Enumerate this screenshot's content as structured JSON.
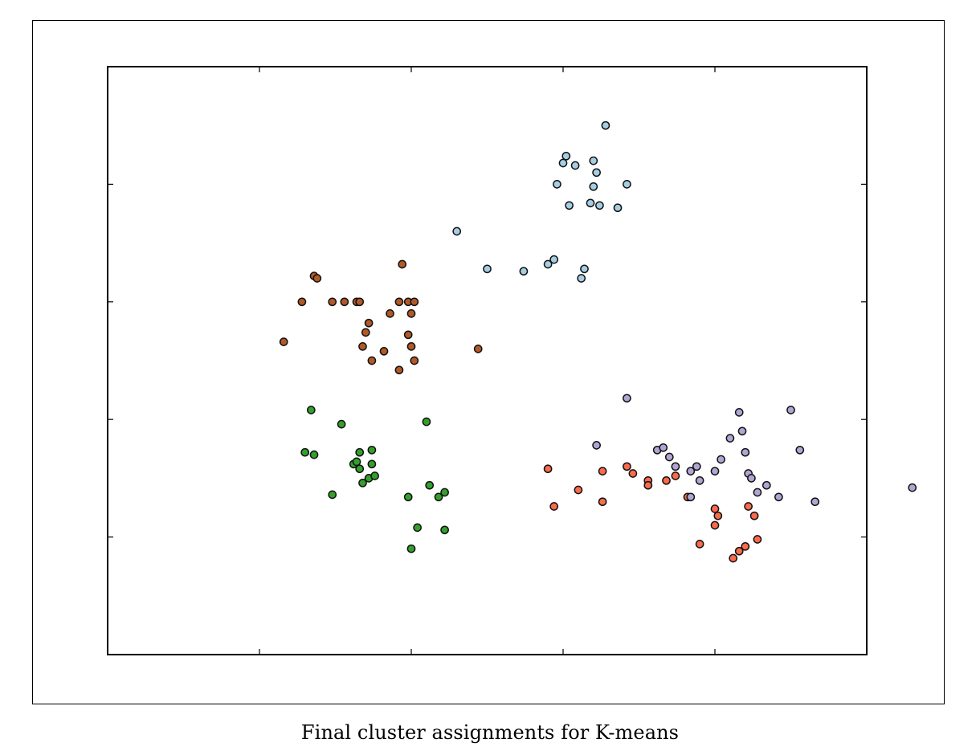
{
  "caption": "Final cluster assignments for K-means",
  "chart_data": {
    "type": "scatter",
    "title": "",
    "xlabel": "",
    "ylabel": "",
    "xlim": [
      -5,
      20
    ],
    "ylim": [
      -15,
      10
    ],
    "x_ticks": [
      0,
      5,
      10,
      15
    ],
    "y_ticks": [
      -10,
      -5,
      0,
      5
    ],
    "tick_labels_shown": false,
    "grid": false,
    "legend": "none",
    "series": [
      {
        "color": "#a6cee3",
        "points": [
          [
            6.5,
            3.0
          ],
          [
            7.5,
            1.4
          ],
          [
            8.7,
            1.3
          ],
          [
            9.5,
            1.6
          ],
          [
            9.7,
            1.8
          ],
          [
            9.8,
            5.0
          ],
          [
            10.0,
            5.9
          ],
          [
            10.1,
            6.2
          ],
          [
            10.4,
            5.8
          ],
          [
            10.2,
            4.1
          ],
          [
            10.6,
            1.0
          ],
          [
            10.7,
            1.4
          ],
          [
            10.9,
            4.2
          ],
          [
            11.0,
            4.9
          ],
          [
            11.0,
            6.0
          ],
          [
            11.1,
            5.5
          ],
          [
            11.2,
            4.1
          ],
          [
            11.4,
            7.5
          ],
          [
            11.8,
            4.0
          ],
          [
            12.1,
            5.0
          ]
        ]
      },
      {
        "color": "#b15928",
        "points": [
          [
            0.8,
            -1.7
          ],
          [
            1.4,
            0.0
          ],
          [
            1.8,
            1.1
          ],
          [
            1.9,
            1.0
          ],
          [
            2.4,
            0.0
          ],
          [
            2.8,
            0.0
          ],
          [
            3.2,
            0.0
          ],
          [
            3.3,
            0.0
          ],
          [
            3.5,
            -1.3
          ],
          [
            3.4,
            -1.9
          ],
          [
            3.6,
            -0.9
          ],
          [
            3.7,
            -2.5
          ],
          [
            4.1,
            -2.1
          ],
          [
            4.3,
            -0.5
          ],
          [
            4.6,
            -2.9
          ],
          [
            4.6,
            0.0
          ],
          [
            4.7,
            1.6
          ],
          [
            4.9,
            0.0
          ],
          [
            4.9,
            -1.4
          ],
          [
            5.0,
            -0.5
          ],
          [
            5.0,
            -1.9
          ],
          [
            5.1,
            -2.5
          ],
          [
            5.1,
            0.0
          ],
          [
            7.2,
            -2.0
          ]
        ]
      },
      {
        "color": "#33a02c",
        "points": [
          [
            1.5,
            -6.4
          ],
          [
            1.7,
            -4.6
          ],
          [
            1.8,
            -6.5
          ],
          [
            2.4,
            -8.2
          ],
          [
            2.7,
            -5.2
          ],
          [
            3.1,
            -6.9
          ],
          [
            3.2,
            -6.8
          ],
          [
            3.3,
            -6.4
          ],
          [
            3.3,
            -7.1
          ],
          [
            3.4,
            -7.7
          ],
          [
            3.6,
            -7.5
          ],
          [
            3.7,
            -6.9
          ],
          [
            3.7,
            -6.3
          ],
          [
            3.8,
            -7.4
          ],
          [
            4.9,
            -8.3
          ],
          [
            5.0,
            -10.5
          ],
          [
            5.2,
            -9.6
          ],
          [
            5.5,
            -5.1
          ],
          [
            5.6,
            -7.8
          ],
          [
            5.9,
            -8.3
          ],
          [
            6.1,
            -8.1
          ],
          [
            6.1,
            -9.7
          ]
        ]
      },
      {
        "color": "#fb6a4a",
        "points": [
          [
            9.5,
            -7.1
          ],
          [
            9.7,
            -8.7
          ],
          [
            10.5,
            -8.0
          ],
          [
            11.3,
            -7.2
          ],
          [
            12.1,
            -7.0
          ],
          [
            12.3,
            -7.3
          ],
          [
            12.8,
            -7.6
          ],
          [
            12.8,
            -7.8
          ],
          [
            13.4,
            -7.6
          ],
          [
            13.7,
            -7.4
          ],
          [
            14.1,
            -8.3
          ],
          [
            14.5,
            -10.3
          ],
          [
            15.0,
            -9.5
          ],
          [
            15.0,
            -8.8
          ],
          [
            15.1,
            -9.1
          ],
          [
            15.6,
            -10.9
          ],
          [
            15.8,
            -10.6
          ],
          [
            16.0,
            -10.4
          ],
          [
            16.1,
            -8.7
          ],
          [
            16.3,
            -9.1
          ],
          [
            16.4,
            -10.1
          ],
          [
            11.3,
            -8.5
          ]
        ]
      },
      {
        "color": "#b2a5d4",
        "points": [
          [
            12.1,
            -4.1
          ],
          [
            11.1,
            -6.1
          ],
          [
            13.1,
            -6.3
          ],
          [
            13.3,
            -6.2
          ],
          [
            13.5,
            -6.6
          ],
          [
            13.7,
            -7.0
          ],
          [
            14.2,
            -7.2
          ],
          [
            14.4,
            -7.0
          ],
          [
            15.0,
            -7.2
          ],
          [
            15.2,
            -6.7
          ],
          [
            15.5,
            -5.8
          ],
          [
            15.8,
            -4.7
          ],
          [
            15.9,
            -5.5
          ],
          [
            16.0,
            -6.4
          ],
          [
            16.1,
            -7.3
          ],
          [
            16.2,
            -7.5
          ],
          [
            16.4,
            -8.1
          ],
          [
            16.7,
            -7.8
          ],
          [
            17.1,
            -8.3
          ],
          [
            17.5,
            -4.6
          ],
          [
            17.8,
            -6.3
          ],
          [
            18.3,
            -8.5
          ],
          [
            21.5,
            -7.9
          ],
          [
            14.2,
            -8.3
          ],
          [
            14.5,
            -7.6
          ]
        ]
      }
    ]
  }
}
